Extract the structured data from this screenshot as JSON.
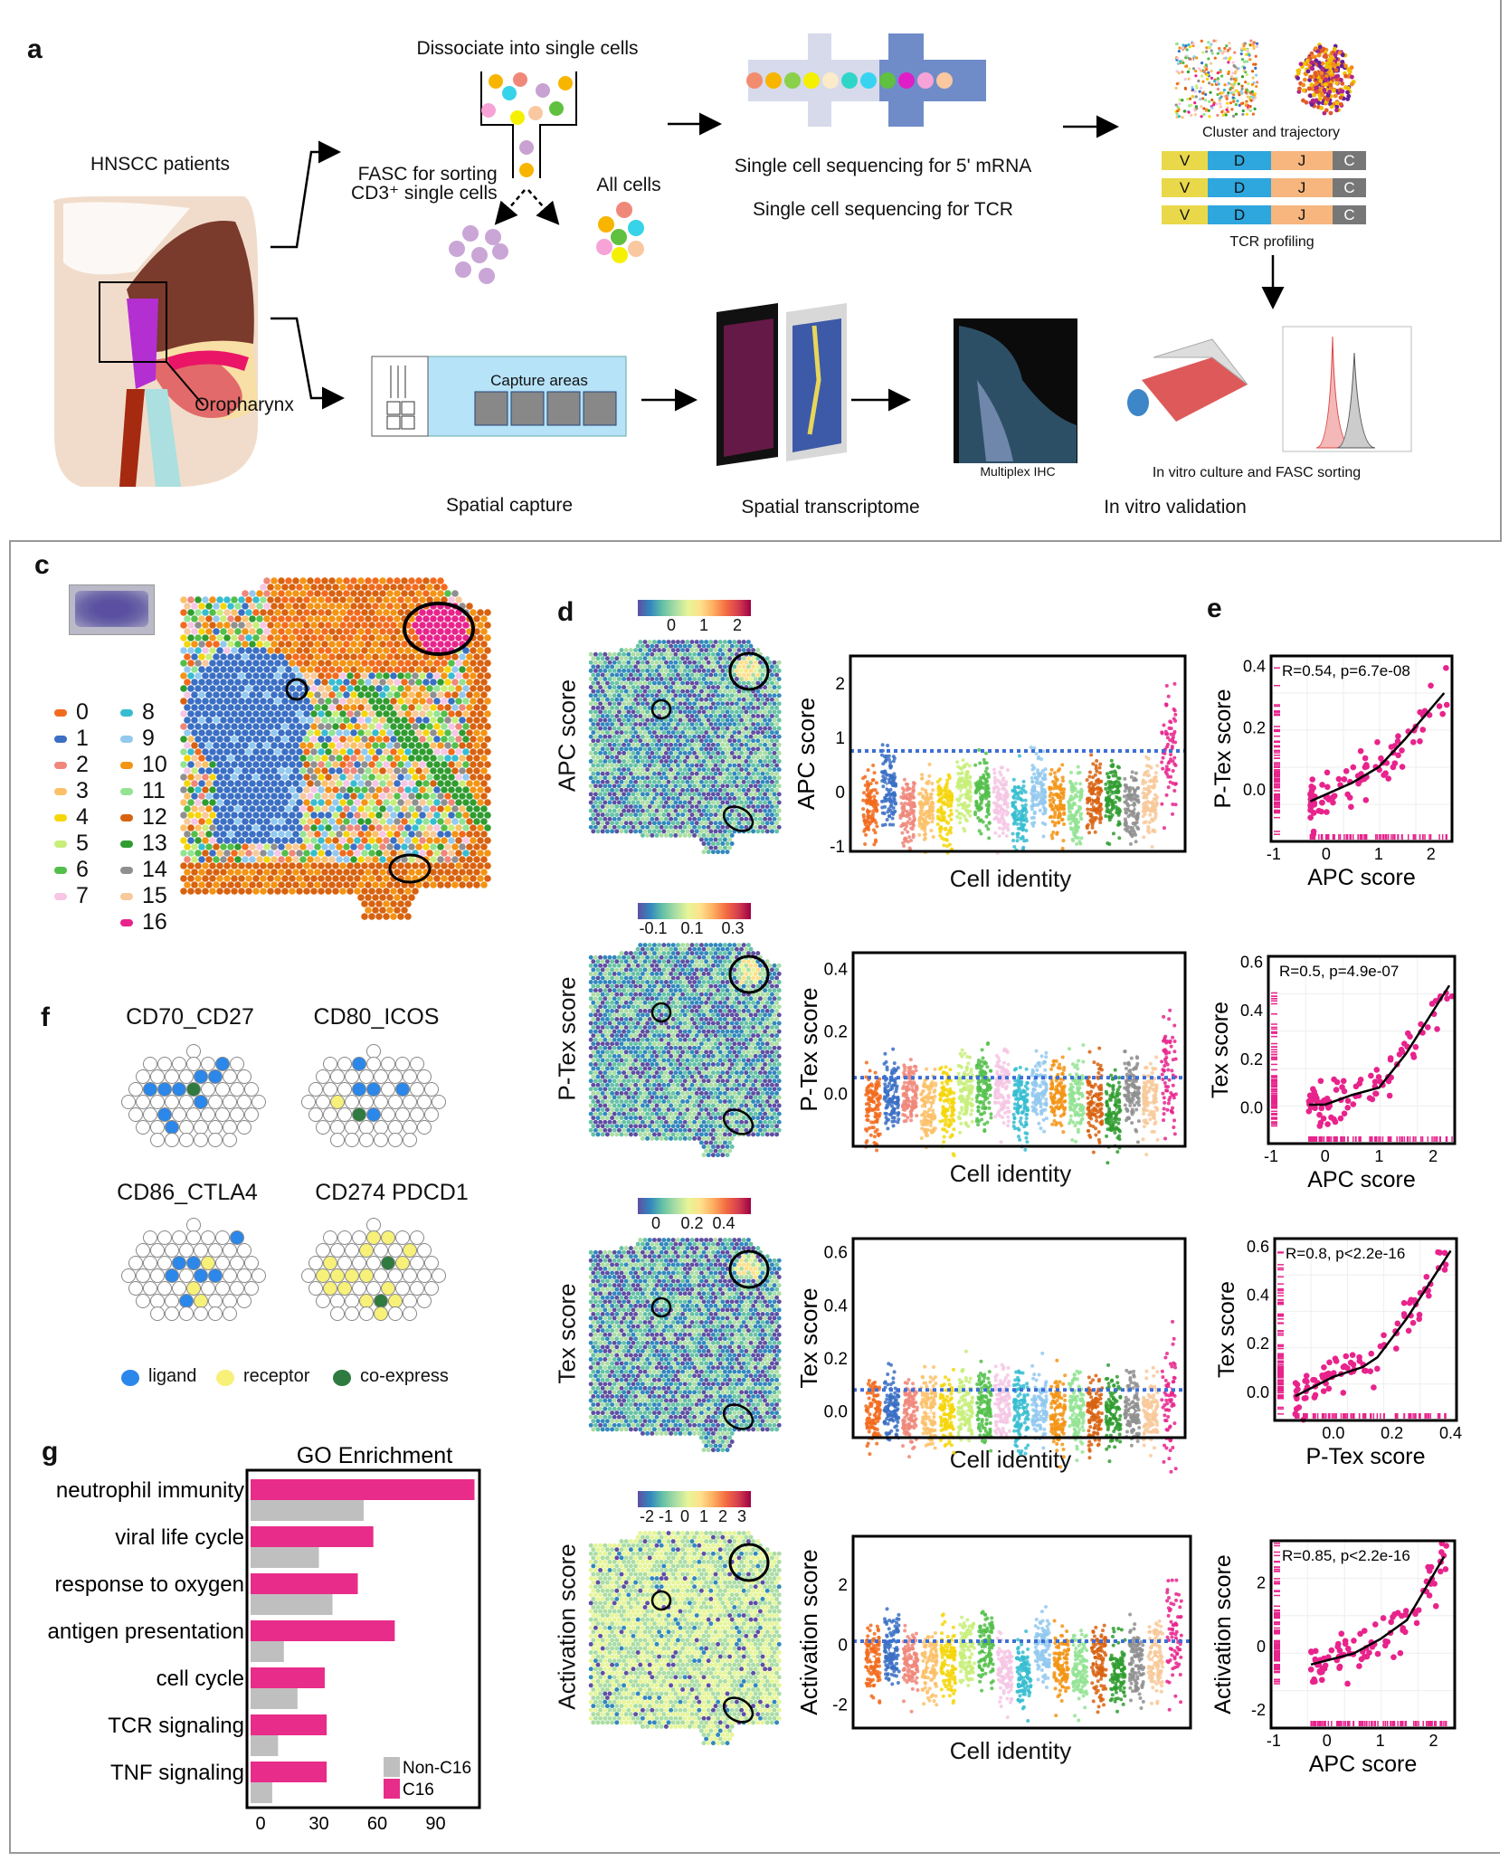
{
  "panel_a": {
    "label": "a",
    "hnscc": "HNSCC patients",
    "oropharynx": "Oropharynx",
    "dissociate": "Dissociate into single cells",
    "fasc_line1": "FASC for sorting",
    "fasc_line2": "CD3⁺ single cells",
    "all_cells": "All cells",
    "seq_mrna": "Single cell sequencing for 5' mRNA",
    "seq_tcr": "Single cell sequencing for TCR",
    "cluster": "Cluster and trajectory",
    "tcr_segments": [
      "V",
      "D",
      "J",
      "C"
    ],
    "tcr_profiling": "TCR profiling",
    "capture_areas": "Capture areas",
    "multiplex": "Multiplex IHC",
    "invitro_culture": "In vitro culture and FASC sorting",
    "spatial_capture": "Spatial capture",
    "spatial_transcriptome": "Spatial transcriptome",
    "invitro_validation": "In vitro validation",
    "segment_colors": [
      "#e9d84a",
      "#2ea6de",
      "#f6b67e",
      "#777777"
    ]
  },
  "panel_c": {
    "label": "c",
    "clusters": [
      {
        "id": "0",
        "color": "#f26b1d"
      },
      {
        "id": "1",
        "color": "#3a6fc4"
      },
      {
        "id": "2",
        "color": "#f0877a"
      },
      {
        "id": "3",
        "color": "#fbc169"
      },
      {
        "id": "4",
        "color": "#f5d60a"
      },
      {
        "id": "5",
        "color": "#c8ee7a"
      },
      {
        "id": "6",
        "color": "#53bf4a"
      },
      {
        "id": "7",
        "color": "#f6c6e4"
      },
      {
        "id": "8",
        "color": "#37bdd1"
      },
      {
        "id": "9",
        "color": "#93c9ee"
      },
      {
        "id": "10",
        "color": "#f39414"
      },
      {
        "id": "11",
        "color": "#93e393"
      },
      {
        "id": "12",
        "color": "#d8620f"
      },
      {
        "id": "13",
        "color": "#2f9c2f"
      },
      {
        "id": "14",
        "color": "#8f8f8f"
      },
      {
        "id": "15",
        "color": "#f8c99a"
      },
      {
        "id": "16",
        "color": "#e8238c"
      }
    ]
  },
  "panel_d": {
    "label": "d",
    "x_label": "Cell identity",
    "rows": [
      {
        "map_label": "APC score",
        "colorbar_ticks": [
          "0",
          "1",
          "2"
        ]
      },
      {
        "map_label": "P-Tex score",
        "colorbar_ticks": [
          "-0.1",
          "0.1",
          "0.3"
        ]
      },
      {
        "map_label": "Tex score",
        "colorbar_ticks": [
          "0",
          "0.2",
          "0.4"
        ]
      },
      {
        "map_label": "Activation score",
        "colorbar_ticks": [
          "-2",
          "-1",
          "0",
          "1",
          "2",
          "3"
        ]
      }
    ]
  },
  "panel_e": {
    "label": "e"
  },
  "panel_f": {
    "label": "f",
    "pairs": [
      "CD70_CD27",
      "CD80_ICOS",
      "CD86_CTLA4",
      "CD274  PDCD1"
    ],
    "legend": [
      {
        "label": "ligand",
        "color": "#2b87ea"
      },
      {
        "label": "receptor",
        "color": "#f7f079"
      },
      {
        "label": "co-express",
        "color": "#2f7a3f"
      }
    ]
  },
  "panel_g": {
    "label": "g"
  },
  "chart_data": [
    {
      "id": "d-apc",
      "type": "scatter",
      "subtype": "strip",
      "ylabel": "APC score",
      "xlabel": "Cell identity",
      "categories": [
        "0",
        "1",
        "2",
        "3",
        "4",
        "5",
        "6",
        "7",
        "8",
        "9",
        "10",
        "11",
        "12",
        "13",
        "14",
        "15",
        "16"
      ],
      "medians": [
        -0.3,
        0.1,
        -0.3,
        -0.3,
        -0.3,
        0.0,
        0.0,
        -0.2,
        -0.3,
        0.05,
        -0.2,
        -0.3,
        -0.1,
        -0.1,
        -0.3,
        -0.1,
        0.75
      ],
      "threshold": 0.75,
      "ylim": [
        -1.1,
        2.5
      ],
      "yticks": [
        "-1",
        "0",
        "1",
        "2"
      ]
    },
    {
      "id": "d-ptex",
      "type": "scatter",
      "subtype": "strip",
      "ylabel": "P-Tex score",
      "xlabel": "Cell identity",
      "categories": [
        "0",
        "1",
        "2",
        "3",
        "4",
        "5",
        "6",
        "7",
        "8",
        "9",
        "10",
        "11",
        "12",
        "13",
        "14",
        "15",
        "16"
      ],
      "medians": [
        -0.04,
        0.0,
        0.0,
        -0.04,
        -0.04,
        0.0,
        0.02,
        0.01,
        -0.03,
        0.01,
        -0.01,
        -0.01,
        -0.02,
        -0.05,
        0.01,
        -0.02,
        0.06
      ],
      "threshold": 0.05,
      "ylim": [
        -0.17,
        0.45
      ],
      "yticks": [
        "0.0",
        "0.2",
        "0.4"
      ]
    },
    {
      "id": "d-tex",
      "type": "scatter",
      "subtype": "strip",
      "ylabel": "Tex score",
      "xlabel": "Cell identity",
      "categories": [
        "0",
        "1",
        "2",
        "3",
        "4",
        "5",
        "6",
        "7",
        "8",
        "9",
        "10",
        "11",
        "12",
        "13",
        "14",
        "15",
        "16"
      ],
      "medians": [
        0.0,
        0.01,
        0.0,
        0.0,
        0.0,
        0.01,
        0.02,
        0.02,
        0.0,
        0.01,
        0.0,
        0.0,
        0.0,
        0.0,
        0.0,
        0.0,
        0.08
      ],
      "threshold": 0.08,
      "ylim": [
        -0.1,
        0.65
      ],
      "yticks": [
        "0.0",
        "0.2",
        "0.4",
        "0.6"
      ]
    },
    {
      "id": "d-act",
      "type": "scatter",
      "subtype": "strip",
      "ylabel": "Activation  score",
      "xlabel": "Cell identity",
      "categories": [
        "0",
        "1",
        "2",
        "3",
        "4",
        "5",
        "6",
        "7",
        "8",
        "9",
        "10",
        "11",
        "12",
        "13",
        "14",
        "15",
        "16"
      ],
      "medians": [
        -0.5,
        -0.2,
        -0.6,
        -0.7,
        -0.6,
        -0.3,
        -0.2,
        -0.9,
        -1.0,
        -0.1,
        -0.6,
        -0.8,
        -0.6,
        -0.9,
        -0.6,
        -0.5,
        0.1
      ],
      "threshold": 0.1,
      "ylim": [
        -2.8,
        3.6
      ],
      "yticks": [
        "-2",
        "0",
        "2"
      ]
    },
    {
      "id": "e1",
      "type": "scatter",
      "annotation": "R=0.54, p=6.7e-08",
      "xlabel": "APC score",
      "ylabel": "P-Tex score",
      "xlim": [
        -1.05,
        2.4
      ],
      "ylim": [
        -0.17,
        0.43
      ],
      "xticks": [
        "-1",
        "0",
        "1",
        "2"
      ],
      "yticks": [
        "0.0",
        "0.2",
        "0.4"
      ],
      "trend": [
        [
          -0.3,
          -0.04
        ],
        [
          0.5,
          0.02
        ],
        [
          1.0,
          0.07
        ],
        [
          1.5,
          0.16
        ],
        [
          2.25,
          0.31
        ]
      ],
      "color": "#e8238c"
    },
    {
      "id": "e2",
      "type": "scatter",
      "annotation": "R=0.5, p=4.9e-07",
      "xlabel": "APC score",
      "ylabel": "Tex score",
      "xlim": [
        -1.05,
        2.4
      ],
      "ylim": [
        -0.15,
        0.62
      ],
      "xticks": [
        "-1",
        "0",
        "1",
        "2"
      ],
      "yticks": [
        "0.0",
        "0.2",
        "0.4",
        "0.6"
      ],
      "trend": [
        [
          -0.3,
          0.01
        ],
        [
          0.0,
          0.01
        ],
        [
          0.5,
          0.05
        ],
        [
          1.0,
          0.08
        ],
        [
          1.5,
          0.22
        ],
        [
          2.3,
          0.5
        ]
      ],
      "color": "#e8238c"
    },
    {
      "id": "e3",
      "type": "scatter",
      "annotation": "R=0.8, p<2.2e-16",
      "xlabel": "P-Tex score",
      "ylabel": "Tex score",
      "xlim": [
        -0.2,
        0.42
      ],
      "ylim": [
        -0.12,
        0.63
      ],
      "xticks": [
        "0.0",
        "0.2",
        "0.4"
      ],
      "yticks": [
        "0.0",
        "0.2",
        "0.4",
        "0.6"
      ],
      "trend": [
        [
          -0.13,
          -0.02
        ],
        [
          0.0,
          0.06
        ],
        [
          0.1,
          0.1
        ],
        [
          0.15,
          0.14
        ],
        [
          0.25,
          0.3
        ],
        [
          0.4,
          0.58
        ]
      ],
      "color": "#e8238c"
    },
    {
      "id": "e4",
      "type": "scatter",
      "annotation": "R=0.85, p<2.2e-16",
      "xlabel": "APC score",
      "ylabel": "Activation score",
      "xlim": [
        -1.05,
        2.4
      ],
      "ylim": [
        -2.6,
        3.3
      ],
      "xticks": [
        "-1",
        "0",
        "1",
        "2"
      ],
      "yticks": [
        "-2",
        "0",
        "2"
      ],
      "trend": [
        [
          -0.3,
          -0.6
        ],
        [
          0.5,
          -0.25
        ],
        [
          1.0,
          0.2
        ],
        [
          1.5,
          0.8
        ],
        [
          2.2,
          2.8
        ]
      ],
      "color": "#e8238c"
    },
    {
      "id": "g",
      "type": "bar",
      "orientation": "horizontal",
      "title": "GO Enrichment",
      "categories": [
        "neutrophil immunity",
        "viral life cycle",
        "response to oxygen",
        "antigen presentation",
        "cell cycle",
        "TCR signaling",
        "TNF signaling"
      ],
      "series": [
        {
          "name": "C16",
          "color": "#e82c8a",
          "values": [
            110,
            58,
            50,
            69,
            33,
            34,
            34
          ]
        },
        {
          "name": "Non-C16",
          "color": "#bfbfbf",
          "values": [
            53,
            30,
            37,
            12,
            19,
            9,
            6
          ]
        }
      ],
      "xlim": [
        0,
        118
      ],
      "xticks": [
        "0",
        "30",
        "60",
        "90"
      ],
      "legend_position": "bottom-right"
    }
  ]
}
